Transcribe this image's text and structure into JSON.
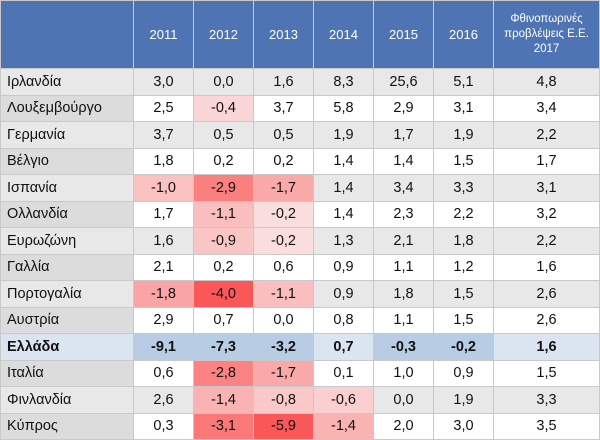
{
  "header": {
    "columns": [
      "",
      "2011",
      "2012",
      "2013",
      "2014",
      "2015",
      "2016",
      "Φθινοπωρινές προβλέψεις Ε.Ε. 2017"
    ]
  },
  "table": {
    "rows": [
      [
        "Ιρλανδία",
        "3,0",
        "0,0",
        "1,6",
        "8,3",
        "25,6",
        "5,1",
        "4,8"
      ],
      [
        "Λουξεμβούργο",
        "2,5",
        "-0,4",
        "3,7",
        "5,8",
        "2,9",
        "3,1",
        "3,4"
      ],
      [
        "Γερμανία",
        "3,7",
        "0,5",
        "0,5",
        "1,9",
        "1,7",
        "1,9",
        "2,2"
      ],
      [
        "Βέλγιο",
        "1,8",
        "0,2",
        "0,2",
        "1,4",
        "1,4",
        "1,5",
        "1,7"
      ],
      [
        "Ισπανία",
        "-1,0",
        "-2,9",
        "-1,7",
        "1,4",
        "3,4",
        "3,3",
        "3,1"
      ],
      [
        "Ολλανδία",
        "1,7",
        "-1,1",
        "-0,2",
        "1,4",
        "2,3",
        "2,2",
        "3,2"
      ],
      [
        "Ευρωζώνη",
        "1,6",
        "-0,9",
        "-0,2",
        "1,3",
        "2,1",
        "1,8",
        "2,2"
      ],
      [
        "Γαλλία",
        "2,1",
        "0,2",
        "0,6",
        "0,9",
        "1,1",
        "1,2",
        "1,6"
      ],
      [
        "Πορτογαλία",
        "-1,8",
        "-4,0",
        "-1,1",
        "0,9",
        "1,8",
        "1,5",
        "2,6"
      ],
      [
        "Αυστρία",
        "2,9",
        "0,7",
        "0,0",
        "0,8",
        "1,1",
        "1,5",
        "2,6"
      ],
      [
        "Ελλάδα",
        "-9,1",
        "-7,3",
        "-3,2",
        "0,7",
        "-0,3",
        "-0,2",
        "1,6"
      ],
      [
        "Ιταλία",
        "0,6",
        "-2,8",
        "-1,7",
        "0,1",
        "1,0",
        "0,9",
        "1,5"
      ],
      [
        "Φινλανδία",
        "2,6",
        "-1,4",
        "-0,8",
        "-0,6",
        "0,0",
        "1,9",
        "3,3"
      ],
      [
        "Κύπρος",
        "0,3",
        "-3,1",
        "-5,9",
        "-1,4",
        "2,0",
        "3,0",
        "3,5"
      ]
    ]
  }
}
